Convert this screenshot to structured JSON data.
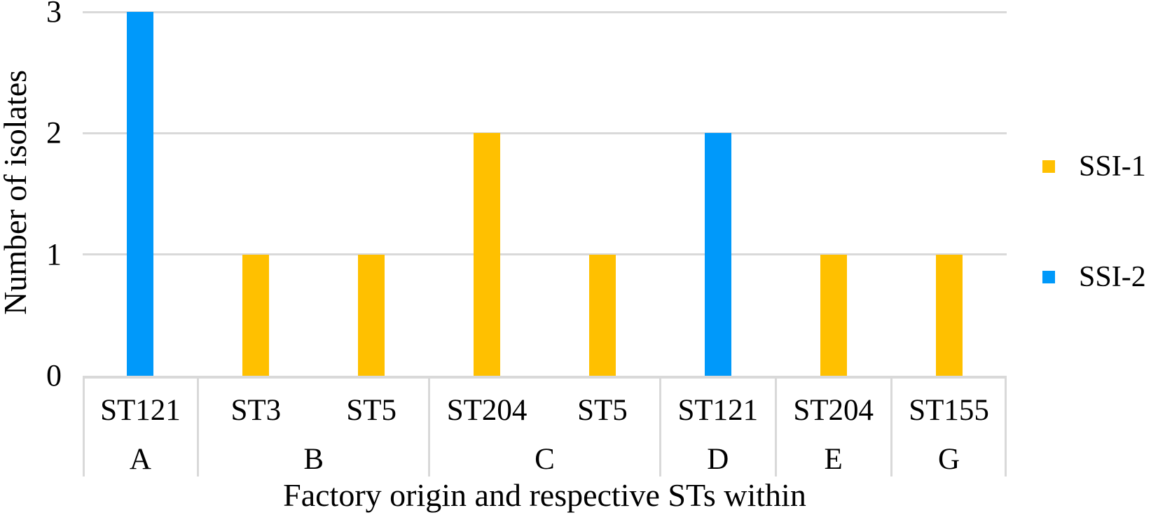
{
  "chart_data": {
    "type": "bar",
    "title": "",
    "xlabel": "Factory origin and respective STs within",
    "ylabel": "Number of isolates",
    "ylim": [
      0,
      3
    ],
    "yticks": [
      0,
      1,
      2,
      3
    ],
    "grid": true,
    "legend_position": "right",
    "series_colors": {
      "SSI-1": "#FFC000",
      "SSI-2": "#0099FA"
    },
    "bars": [
      {
        "st": "ST121",
        "factory": "A",
        "value": 3,
        "series": "SSI-2"
      },
      {
        "st": "ST3",
        "factory": "B",
        "value": 1,
        "series": "SSI-1"
      },
      {
        "st": "ST5",
        "factory": "B",
        "value": 1,
        "series": "SSI-1"
      },
      {
        "st": "ST204",
        "factory": "C",
        "value": 2,
        "series": "SSI-1"
      },
      {
        "st": "ST5",
        "factory": "C",
        "value": 1,
        "series": "SSI-1"
      },
      {
        "st": "ST121",
        "factory": "D",
        "value": 2,
        "series": "SSI-2"
      },
      {
        "st": "ST204",
        "factory": "E",
        "value": 1,
        "series": "SSI-1"
      },
      {
        "st": "ST155",
        "factory": "G",
        "value": 1,
        "series": "SSI-1"
      }
    ],
    "groups": [
      {
        "factory": "A",
        "sts": [
          "ST121"
        ]
      },
      {
        "factory": "B",
        "sts": [
          "ST3",
          "ST5"
        ]
      },
      {
        "factory": "C",
        "sts": [
          "ST204",
          "ST5"
        ]
      },
      {
        "factory": "D",
        "sts": [
          "ST121"
        ]
      },
      {
        "factory": "E",
        "sts": [
          "ST204"
        ]
      },
      {
        "factory": "G",
        "sts": [
          "ST155"
        ]
      }
    ]
  },
  "legend": {
    "items": [
      {
        "label": "SSI-1",
        "color": "#FFC000"
      },
      {
        "label": "SSI-2",
        "color": "#0099FA"
      }
    ]
  },
  "colors": {
    "grid": "#D9D9D9",
    "text": "#000000"
  }
}
